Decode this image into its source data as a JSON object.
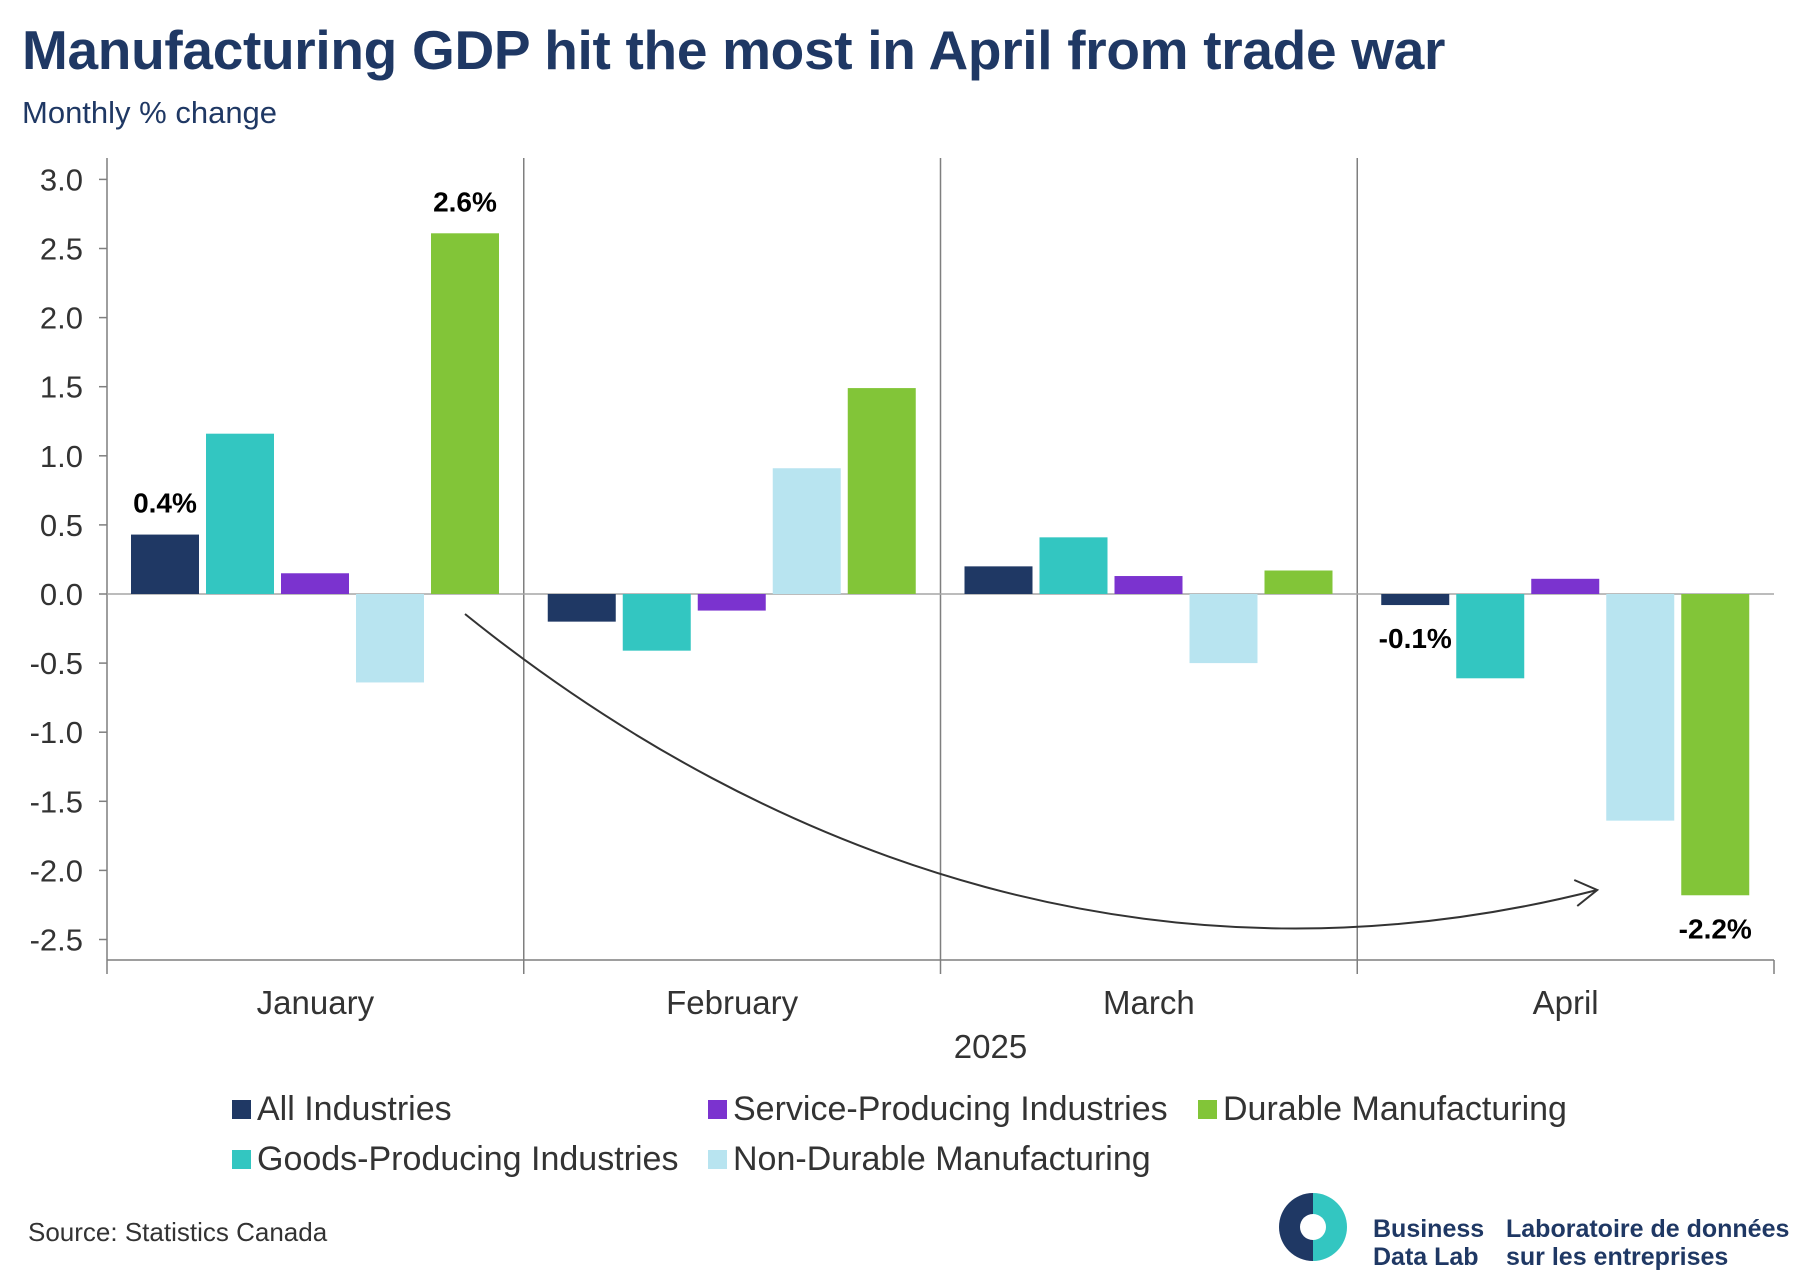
{
  "title": "Manufacturing GDP hit the most in April from trade war",
  "subtitle": "Monthly % change",
  "source": "Source: Statistics Canada",
  "logo": {
    "en_line1": "Business",
    "en_line2": "Data Lab",
    "fr_line1": "Laboratoire de données",
    "fr_line2": "sur les entreprises",
    "colors": {
      "dark": "#1f3864",
      "teal": "#33c6c1"
    }
  },
  "chart_data": {
    "type": "bar",
    "xlabel": "2025",
    "ylabel": "",
    "ylim": [
      -2.5,
      3.0
    ],
    "yticks": [
      "3.0",
      "2.5",
      "2.0",
      "1.5",
      "1.0",
      "0.5",
      "0.0",
      "-0.5",
      "-1.0",
      "-1.5",
      "-2.0",
      "-2.5"
    ],
    "categories": [
      "January",
      "February",
      "March",
      "April"
    ],
    "series": [
      {
        "name": "All Industries",
        "color": "#1f3864",
        "values": [
          0.43,
          -0.2,
          0.2,
          -0.08
        ]
      },
      {
        "name": "Goods-Producing Industries",
        "color": "#33c6c1",
        "values": [
          1.16,
          -0.41,
          0.41,
          -0.61
        ]
      },
      {
        "name": "Service-Producing Industries",
        "color": "#7b33cf",
        "values": [
          0.15,
          -0.12,
          0.13,
          0.11
        ]
      },
      {
        "name": "Non-Durable Manufacturing",
        "color": "#b8e4f0",
        "values": [
          -0.64,
          0.91,
          -0.5,
          -1.64
        ]
      },
      {
        "name": "Durable Manufacturing",
        "color": "#82c538",
        "values": [
          2.61,
          1.49,
          0.17,
          -2.18
        ]
      }
    ],
    "annotations": [
      {
        "text": "0.4%",
        "category": "January",
        "series": "All Industries"
      },
      {
        "text": "2.6%",
        "category": "January",
        "series": "Durable Manufacturing"
      },
      {
        "text": "-0.1%",
        "category": "April",
        "series": "All Industries"
      },
      {
        "text": "-2.2%",
        "category": "April",
        "series": "Durable Manufacturing"
      }
    ],
    "arrow": {
      "from": {
        "category": "January",
        "series": "Durable Manufacturing"
      },
      "to": {
        "category": "April",
        "series": "Durable Manufacturing"
      }
    },
    "grid": false,
    "legend_position": "bottom",
    "legend": [
      {
        "name": "All Industries",
        "color": "#1f3864"
      },
      {
        "name": "Service-Producing Industries",
        "color": "#7b33cf"
      },
      {
        "name": "Durable Manufacturing",
        "color": "#82c538"
      },
      {
        "name": "Goods-Producing Industries",
        "color": "#33c6c1"
      },
      {
        "name": "Non-Durable Manufacturing",
        "color": "#b8e4f0"
      }
    ]
  }
}
